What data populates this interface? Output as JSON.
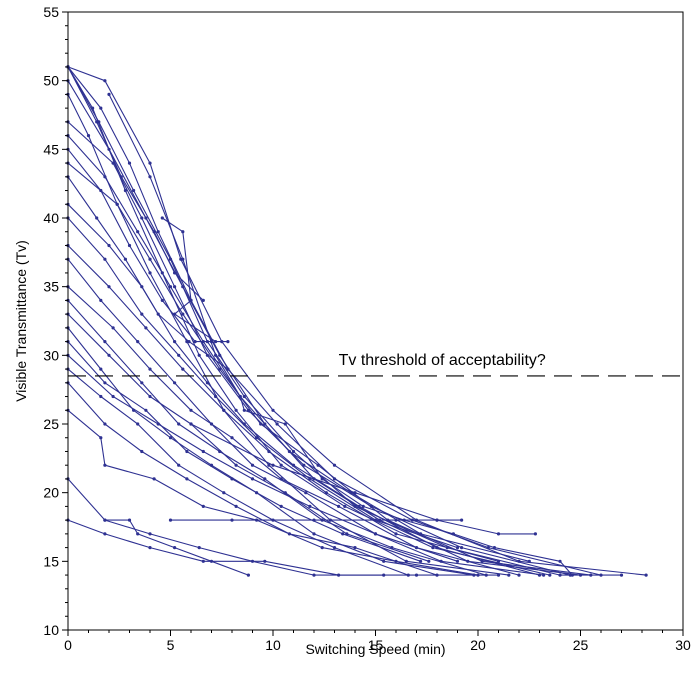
{
  "chart_data": {
    "type": "line",
    "xlabel": "Switching Speed (min)",
    "ylabel": "Visible Transmittance (Tv)",
    "xlim": [
      0,
      30
    ],
    "ylim": [
      10,
      55
    ],
    "xticks": [
      "0",
      "5",
      "10",
      "15",
      "20",
      "25",
      "30"
    ],
    "yticks": [
      "10",
      "15",
      "20",
      "25",
      "30",
      "35",
      "40",
      "45",
      "50",
      "55"
    ],
    "grid": false,
    "legend": "none",
    "line_color": "#2e3192",
    "threshold": {
      "y": 28.5,
      "label": "Tv threshold of acceptability?"
    },
    "series": [
      {
        "x": [
          0,
          1.8,
          4.0,
          5.5,
          7.5,
          10.0,
          13.0,
          17.0,
          22.0,
          28.2
        ],
        "y": [
          51,
          50,
          44,
          37,
          31,
          26,
          22,
          18,
          15,
          14
        ]
      },
      {
        "x": [
          0,
          1.5,
          3.2,
          5.0,
          6.8,
          8.6,
          11.0,
          14.0,
          18.5,
          24.0,
          27.0
        ],
        "y": [
          51,
          47,
          42,
          37,
          31,
          27,
          23,
          19,
          16,
          14,
          14
        ]
      },
      {
        "x": [
          0,
          1.2,
          2.8,
          4.6,
          6.4,
          8.2,
          10.4,
          13.5,
          17.8,
          23.5
        ],
        "y": [
          51,
          48,
          42,
          36,
          30,
          26,
          22,
          19,
          16,
          14
        ]
      },
      {
        "x": [
          0,
          2.0,
          3.8,
          5.6,
          7.4,
          9.6,
          12.0,
          15.2,
          19.5,
          25.0
        ],
        "y": [
          50,
          45,
          40,
          35,
          30,
          25,
          21,
          18,
          15,
          14
        ]
      },
      {
        "x": [
          0,
          1.0,
          2.4,
          4.0,
          5.8,
          7.6,
          9.8,
          12.8,
          16.5,
          21.5
        ],
        "y": [
          49,
          46,
          41,
          36,
          31,
          26,
          22,
          18,
          15,
          14
        ]
      },
      {
        "x": [
          0,
          1.6,
          3.0,
          4.4,
          6.0,
          7.8,
          10.2,
          13.0,
          16.8,
          20.5,
          26.0
        ],
        "y": [
          51,
          48,
          44,
          39,
          34,
          29,
          25,
          21,
          18,
          16,
          14
        ]
      },
      {
        "x": [
          0,
          1.4,
          2.6,
          4.2,
          5.2,
          6.6
        ],
        "y": [
          51,
          47,
          43,
          39,
          36,
          34
        ]
      },
      {
        "x": [
          0,
          2.2,
          3.6,
          5.2,
          6.8,
          8.8,
          11.5,
          14.8,
          19.2,
          24.5
        ],
        "y": [
          47,
          44,
          40,
          35,
          30,
          26,
          22,
          19,
          16,
          14
        ]
      },
      {
        "x": [
          0,
          1.8,
          3.4,
          5.0,
          6.6,
          8.4,
          10.8,
          13.8,
          17.2,
          22.5
        ],
        "y": [
          46,
          43,
          39,
          35,
          31,
          27,
          23,
          20,
          17,
          15
        ]
      },
      {
        "x": [
          0,
          1.6,
          3.0,
          4.6,
          6.2,
          7.0
        ],
        "y": [
          45,
          42,
          38,
          34,
          31,
          31
        ]
      },
      {
        "x": [
          0,
          2.4,
          4.0,
          5.6,
          7.4,
          9.4,
          12.2,
          15.6,
          20.2,
          25.5
        ],
        "y": [
          44,
          41,
          37,
          33,
          29,
          25,
          22,
          18,
          15,
          14
        ]
      },
      {
        "x": [
          0,
          1.4,
          2.8,
          4.4,
          5.9,
          7.8
        ],
        "y": [
          43,
          40,
          37,
          33,
          31,
          29
        ]
      },
      {
        "x": [
          0,
          2.0,
          3.6,
          5.2,
          6.8,
          8.6,
          11.0,
          14.2,
          18.0,
          23.0
        ],
        "y": [
          41,
          38,
          35,
          31,
          28,
          25,
          22,
          19,
          16,
          14
        ]
      },
      {
        "x": [
          0,
          1.8,
          3.6,
          5.4,
          7.2,
          9.2,
          11.8,
          15.0,
          19.0
        ],
        "y": [
          40,
          37,
          33,
          30,
          27,
          24,
          21,
          18,
          16
        ]
      },
      {
        "x": [
          0,
          2.0,
          3.8,
          5.6,
          7.6,
          9.8,
          12.6,
          16.0,
          21.0
        ],
        "y": [
          38,
          35,
          32,
          29,
          26,
          23,
          20,
          17,
          15
        ]
      },
      {
        "x": [
          0,
          1.6,
          3.4,
          5.2,
          7.0,
          9.0,
          11.6,
          15.0,
          18.2,
          23.2
        ],
        "y": [
          37,
          34,
          31,
          28,
          25,
          22,
          20,
          17,
          15,
          14
        ]
      },
      {
        "x": [
          0,
          2.2,
          4.0,
          6.0,
          8.0,
          10.4,
          13.2,
          17.0,
          22.0
        ],
        "y": [
          35,
          32,
          29,
          26,
          24,
          21,
          19,
          16,
          14
        ]
      },
      {
        "x": [
          0,
          1.8,
          3.6,
          5.4,
          7.4,
          9.6,
          12.4,
          15.8,
          20.4
        ],
        "y": [
          34,
          31,
          28,
          25,
          23,
          21,
          18,
          16,
          14
        ]
      },
      {
        "x": [
          0,
          2.0,
          4.0,
          6.0,
          8.2,
          10.6,
          13.6,
          17.6
        ],
        "y": [
          33,
          30,
          27,
          25,
          22,
          20,
          17,
          15
        ]
      },
      {
        "x": [
          0,
          1.6,
          3.2,
          5.0,
          7.0,
          9.2,
          12.0,
          15.4,
          19.8
        ],
        "y": [
          32,
          29,
          26,
          24,
          22,
          20,
          17,
          15,
          14
        ]
      },
      {
        "x": [
          0,
          1.8,
          3.8,
          5.8,
          8.0,
          10.4,
          13.4,
          17.2
        ],
        "y": [
          31,
          28,
          26,
          23,
          21,
          19,
          17,
          15
        ]
      },
      {
        "x": [
          0,
          2.2,
          4.4,
          6.6,
          9.0,
          11.8,
          15.0,
          19.0
        ],
        "y": [
          30,
          27,
          25,
          23,
          21,
          19,
          17,
          15
        ]
      },
      {
        "x": [
          0,
          1.6,
          3.4,
          5.4,
          7.6,
          10.0,
          13.0,
          16.6
        ],
        "y": [
          29,
          27,
          25,
          22,
          20,
          18,
          16,
          14
        ]
      },
      {
        "x": [
          0,
          1.8,
          3.6,
          5.8,
          8.2,
          10.8,
          14.0,
          18.0
        ],
        "y": [
          28,
          25,
          23,
          21,
          19,
          17,
          16,
          14
        ]
      },
      {
        "x": [
          0,
          1.6,
          1.8,
          4.2,
          6.6,
          9.2,
          12.4,
          16.0,
          20.0
        ],
        "y": [
          26,
          24,
          22,
          21,
          19,
          18,
          16,
          15,
          14
        ]
      },
      {
        "x": [
          0,
          1.8,
          4.0,
          6.4,
          9.0,
          12.0,
          15.4
        ],
        "y": [
          21,
          18,
          17,
          16,
          15,
          14,
          14
        ]
      },
      {
        "x": [
          0,
          1.8,
          4.0,
          6.6,
          9.6,
          13.2,
          17.0,
          21.0
        ],
        "y": [
          18,
          17,
          16,
          15,
          15,
          14,
          14,
          14
        ]
      },
      {
        "x": [
          1.8,
          3.0,
          3.4,
          5.2,
          7.0,
          8.8
        ],
        "y": [
          18,
          18,
          17,
          16,
          15,
          14
        ]
      },
      {
        "x": [
          5.0,
          8.0,
          12.0,
          16.0,
          18.0,
          19.2
        ],
        "y": [
          18,
          18,
          18,
          18,
          18,
          18
        ]
      },
      {
        "x": [
          6.0,
          10.0,
          14.0,
          18.0,
          21.0,
          22.8
        ],
        "y": [
          25,
          22,
          20,
          18,
          17,
          17
        ]
      },
      {
        "x": [
          4.6,
          5.6,
          6.0,
          5.2,
          7.2,
          7.8
        ],
        "y": [
          40,
          39,
          34,
          33,
          31,
          31
        ]
      },
      {
        "x": [
          2.0,
          4.0,
          5.6,
          7.2,
          8.4,
          8.6,
          10.6,
          12.4,
          14.4,
          16.4,
          18.8,
          20.8,
          24.0,
          24.6
        ],
        "y": [
          49,
          43,
          37,
          30,
          27,
          26,
          25,
          21,
          19,
          18,
          17,
          16,
          15,
          14
        ]
      }
    ]
  }
}
